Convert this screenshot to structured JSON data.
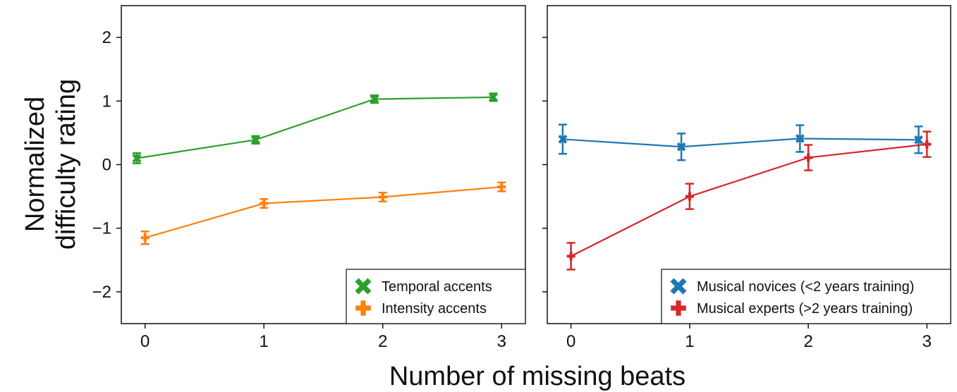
{
  "chart_data": [
    {
      "type": "line",
      "panel": "left",
      "x_ticks": [
        0,
        1,
        2,
        3
      ],
      "y_ticks": [
        -2,
        -1,
        0,
        1,
        2
      ],
      "y_tick_labels": [
        "−2",
        "−1",
        "0",
        "1",
        "2"
      ],
      "xlim": [
        -0.2,
        3.2
      ],
      "ylim": [
        -2.5,
        2.5
      ],
      "grid": false,
      "legend_position": "bottom-right",
      "series": [
        {
          "name": "Temporal accents",
          "color": "#2ca02c",
          "marker": "x",
          "x": [
            -0.07,
            0.93,
            1.93,
            2.93
          ],
          "y": [
            0.1,
            0.39,
            1.03,
            1.06
          ],
          "err": [
            0.08,
            0.06,
            0.06,
            0.06
          ]
        },
        {
          "name": "Intensity accents",
          "color": "#ff7f0e",
          "marker": "plus",
          "x": [
            0.0,
            1.0,
            2.0,
            3.0
          ],
          "y": [
            -1.15,
            -0.61,
            -0.51,
            -0.35
          ],
          "err": [
            0.1,
            0.07,
            0.07,
            0.07
          ]
        }
      ]
    },
    {
      "type": "line",
      "panel": "right",
      "x_ticks": [
        0,
        1,
        2,
        3
      ],
      "y_ticks": [
        -2,
        -1,
        0,
        1,
        2
      ],
      "xlim": [
        -0.2,
        3.2
      ],
      "ylim": [
        -2.5,
        2.5
      ],
      "grid": false,
      "legend_position": "bottom-right",
      "series": [
        {
          "name": "Musical novices (<2 years training)",
          "color": "#1f77b4",
          "marker": "x",
          "x": [
            -0.07,
            0.93,
            1.93,
            2.93
          ],
          "y": [
            0.4,
            0.28,
            0.41,
            0.39
          ],
          "err": [
            0.23,
            0.21,
            0.21,
            0.21
          ]
        },
        {
          "name": "Musical experts (>2 years training)",
          "color": "#d62728",
          "marker": "plus",
          "x": [
            0.0,
            1.0,
            2.0,
            3.0
          ],
          "y": [
            -1.44,
            -0.5,
            0.11,
            0.32
          ],
          "err": [
            0.21,
            0.2,
            0.2,
            0.2
          ]
        }
      ]
    }
  ],
  "ylabel_lines": [
    "Normalized",
    "difficulty rating"
  ],
  "xlabel": "Number of missing beats"
}
